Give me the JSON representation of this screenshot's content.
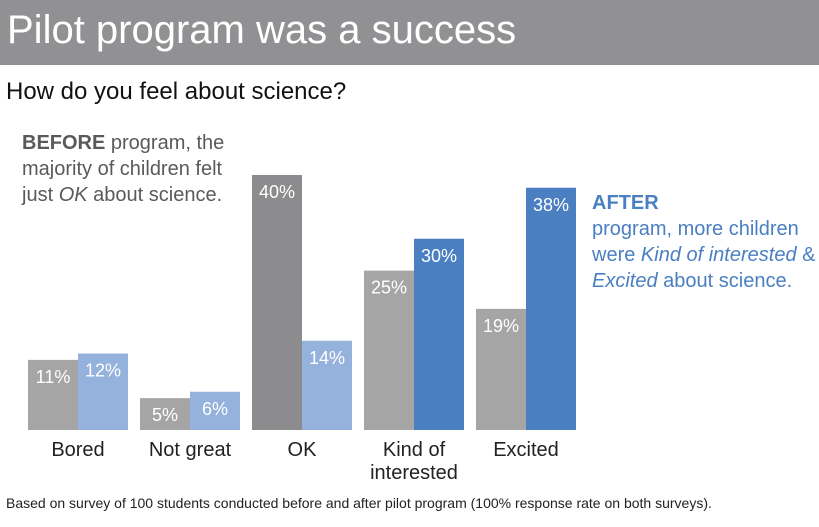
{
  "header": {
    "title": "Pilot program was a success",
    "subtitle": "How do you feel about science?"
  },
  "annotations": {
    "before": {
      "bold": "BEFORE",
      "text1": " program, the majority of children felt just ",
      "em": "OK",
      "text2": " about science."
    },
    "after": {
      "bold": "AFTER",
      "text1": " program, more children were ",
      "em1": "Kind of interested",
      "text2": " & ",
      "em2": "Excited",
      "text3": " about science."
    }
  },
  "footnote": "Based on survey of 100 students conducted before and after pilot program (100% response rate on both surveys).",
  "colors": {
    "banner": "#919194",
    "before": "#a5a5a5",
    "before_highlight": "#8c8c8f",
    "after": "#94b2dc",
    "after_highlight": "#4a7fc2",
    "before_text": "#5a5a5a",
    "after_text": "#4a7fc2"
  },
  "chart_data": {
    "type": "bar",
    "title": "How do you feel about science?",
    "xlabel": "",
    "ylabel": "",
    "ylim": [
      0,
      40
    ],
    "categories": [
      [
        "Bored"
      ],
      [
        "Not great"
      ],
      [
        "OK"
      ],
      [
        "Kind of",
        "interested"
      ],
      [
        "Excited"
      ]
    ],
    "series": [
      {
        "name": "Before",
        "values": [
          11,
          5,
          40,
          25,
          19
        ],
        "labels": [
          "11%",
          "5%",
          "40%",
          "25%",
          "19%"
        ]
      },
      {
        "name": "After",
        "values": [
          12,
          6,
          14,
          30,
          38
        ],
        "labels": [
          "12%",
          "6%",
          "14%",
          "30%",
          "38%"
        ]
      }
    ],
    "highlight": {
      "Before": [
        2
      ],
      "After": [
        3,
        4
      ]
    }
  }
}
